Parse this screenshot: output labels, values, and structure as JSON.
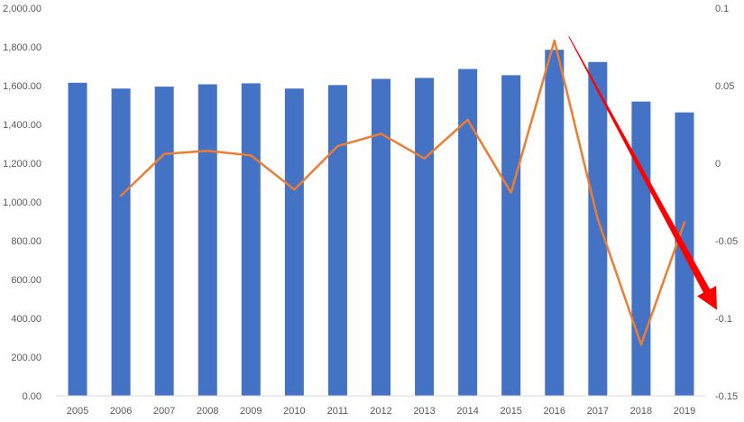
{
  "chart_data": {
    "type": "bar+line",
    "title": "",
    "categories": [
      "2005",
      "2006",
      "2007",
      "2008",
      "2009",
      "2010",
      "2011",
      "2012",
      "2013",
      "2014",
      "2015",
      "2016",
      "2017",
      "2018",
      "2019"
    ],
    "series": [
      {
        "type": "bar",
        "axis": "left",
        "color": "#4472C4",
        "values": [
          1615,
          1585,
          1595,
          1607,
          1612,
          1585,
          1603,
          1635,
          1640,
          1686,
          1654,
          1785,
          1722,
          1518,
          1462
        ]
      },
      {
        "type": "line",
        "axis": "right",
        "color": "#ED7D31",
        "values": [
          null,
          -0.021,
          0.006,
          0.008,
          0.005,
          -0.017,
          0.011,
          0.019,
          0.003,
          0.028,
          -0.019,
          0.079,
          -0.036,
          -0.117,
          -0.038
        ]
      }
    ],
    "left_axis": {
      "ylim": [
        0,
        2000
      ],
      "ticks": [
        "0.00",
        "200.00",
        "400.00",
        "600.00",
        "800.00",
        "1,000.00",
        "1,200.00",
        "1,400.00",
        "1,600.00",
        "1,800.00",
        "2,000.00"
      ]
    },
    "right_axis": {
      "ylim": [
        -0.15,
        0.1
      ],
      "ticks": [
        "-0.15",
        "-0.1",
        "-0.05",
        "0",
        "0.05",
        "0.1"
      ]
    },
    "grid": false,
    "legend": "none",
    "annotation": {
      "type": "arrow",
      "color": "#FF0000",
      "from": {
        "x": "2016",
        "y": 0.08
      },
      "to": {
        "x": "2019",
        "y": -0.09
      }
    }
  }
}
